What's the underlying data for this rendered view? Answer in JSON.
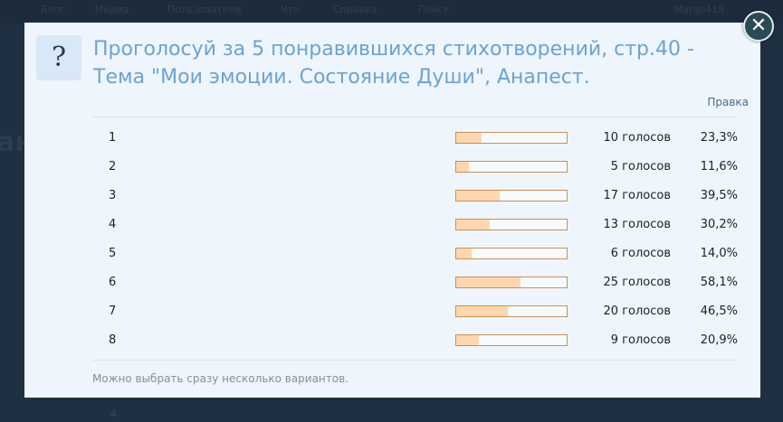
{
  "background": {
    "nav_items": [
      "Блог",
      "Медиа",
      "Пользователи",
      "Что",
      "Справка",
      "Поиск",
      "Margo419"
    ],
    "partial_heading": "ан",
    "partial_number": "4"
  },
  "modal": {
    "icon": "question-icon",
    "icon_glyph": "?",
    "title": "Проголосуй за 5 понравившихся стихотворений, стр.40 - Тема \"Мои эмоции. Состояние Души\", Анапест.",
    "edit_link": "Правка",
    "close_glyph": "✕",
    "footer_note": "Можно выбрать сразу несколько вариантов.",
    "colors": {
      "title": "#6da3cf",
      "bar_fill": "#fdd7b0",
      "bar_border": "#c8905a",
      "modal_bg": "#eef5fc"
    },
    "results": [
      {
        "option": "1",
        "votes": "10 голосов",
        "percent": "23,3%",
        "value": 23.3
      },
      {
        "option": "2",
        "votes": "5 голосов",
        "percent": "11,6%",
        "value": 11.6
      },
      {
        "option": "3",
        "votes": "17 голосов",
        "percent": "39,5%",
        "value": 39.5
      },
      {
        "option": "4",
        "votes": "13 голосов",
        "percent": "30,2%",
        "value": 30.2
      },
      {
        "option": "5",
        "votes": "6 голосов",
        "percent": "14,0%",
        "value": 14.0
      },
      {
        "option": "6",
        "votes": "25 голосов",
        "percent": "58,1%",
        "value": 58.1
      },
      {
        "option": "7",
        "votes": "20 голосов",
        "percent": "46,5%",
        "value": 46.5
      },
      {
        "option": "8",
        "votes": "9 голосов",
        "percent": "20,9%",
        "value": 20.9
      }
    ]
  }
}
